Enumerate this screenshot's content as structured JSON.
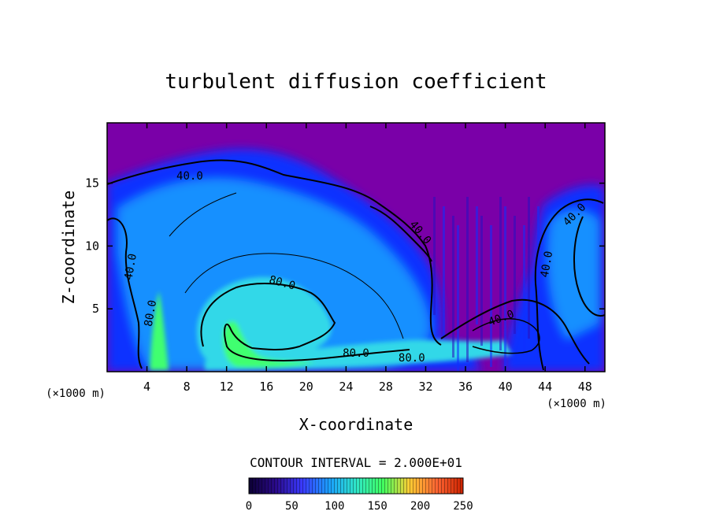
{
  "chart_data": {
    "type": "heatmap",
    "title": "turbulent diffusion coefficient",
    "xlabel": "X-coordinate",
    "ylabel": "Z-coordinate",
    "x_units": "(×1000 m)",
    "z_units": "(×1000 m)",
    "xlim": [
      0,
      50
    ],
    "zlim": [
      0,
      19.8
    ],
    "x_ticks": [
      4,
      8,
      12,
      16,
      20,
      24,
      28,
      32,
      36,
      40,
      44,
      48
    ],
    "z_ticks": [
      5,
      10,
      15
    ],
    "contour_interval_text": "CONTOUR INTERVAL = 2.000E+01",
    "contour_labels": [
      {
        "text": "40.0",
        "x": 8.3,
        "z": 15.3,
        "rot": 0
      },
      {
        "text": "40.0",
        "x": 31.2,
        "z": 10.9,
        "rot": 50
      },
      {
        "text": "40.0",
        "x": 47.2,
        "z": 12.3,
        "rot": -45
      },
      {
        "text": "40.0",
        "x": 2.7,
        "z": 8.3,
        "rot": -80
      },
      {
        "text": "80.0",
        "x": 4.7,
        "z": 4.6,
        "rot": -80
      },
      {
        "text": "80.0",
        "x": 17.5,
        "z": 6.8,
        "rot": 15
      },
      {
        "text": "40.0",
        "x": 44.5,
        "z": 8.5,
        "rot": -80
      },
      {
        "text": "40.0",
        "x": 39.7,
        "z": 4.0,
        "rot": -20
      },
      {
        "text": "80.0",
        "x": 25.0,
        "z": 1.2,
        "rot": 0
      },
      {
        "text": "80.0",
        "x": 30.6,
        "z": 0.8,
        "rot": 0
      }
    ],
    "colorbar": {
      "min": 0,
      "max": 250,
      "ticks": [
        0,
        50,
        100,
        150,
        200,
        250
      ],
      "colors": [
        "#0c0033",
        "#2a0a8a",
        "#3a3aff",
        "#1aa0ff",
        "#2fe6c8",
        "#40ff60",
        "#ffcc33",
        "#ff6633",
        "#cc2200"
      ]
    },
    "colors": {
      "background": "#7a00a8",
      "low": "#1030ff",
      "mid": "#1690ff",
      "high": "#30d8e8",
      "peak": "#40ff70"
    }
  }
}
